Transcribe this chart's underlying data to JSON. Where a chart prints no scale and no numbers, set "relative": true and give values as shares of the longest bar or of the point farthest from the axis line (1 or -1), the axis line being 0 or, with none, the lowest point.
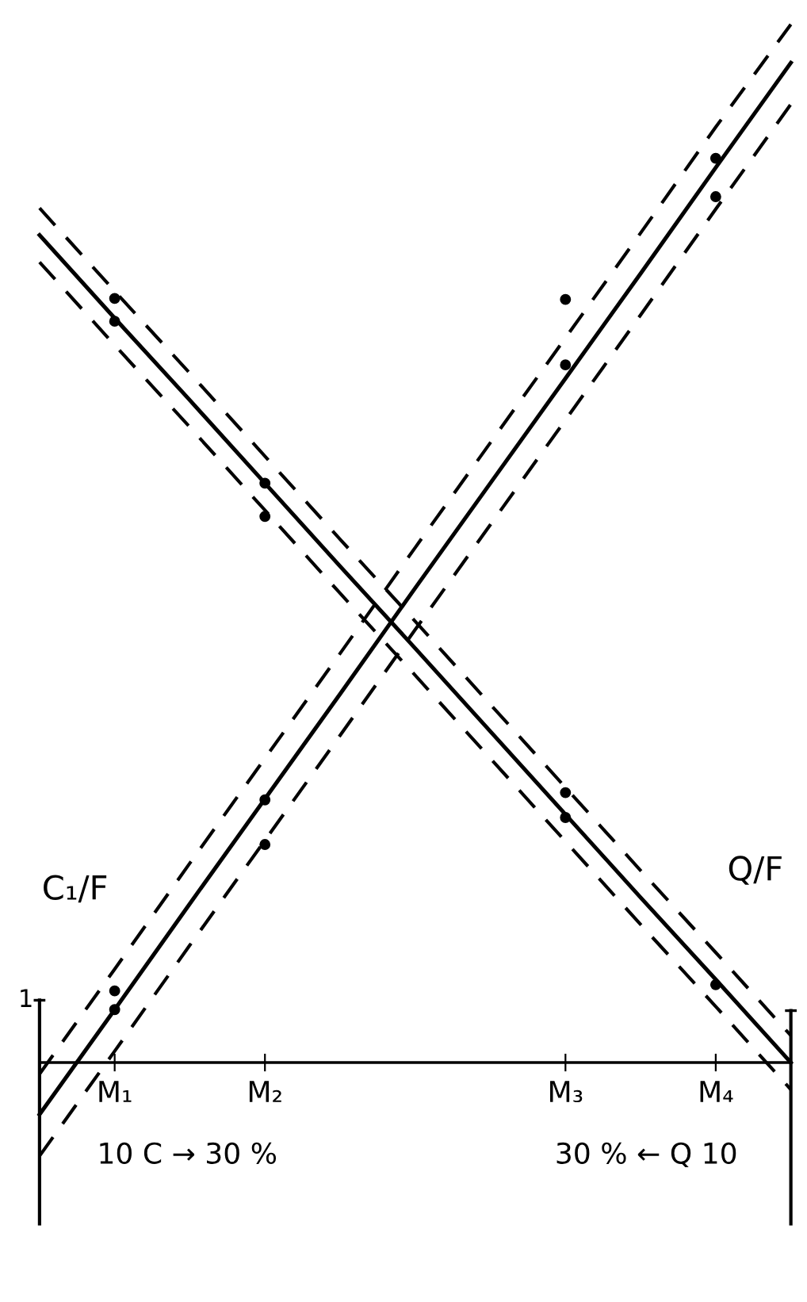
{
  "chart_data": {
    "type": "line",
    "relative": true,
    "categories": [
      null,
      "M₁",
      null,
      "M₂",
      null,
      null,
      null,
      "M₃",
      null,
      "M₄",
      null
    ],
    "series": [
      {
        "name": "C₁/F",
        "color": "#000000",
        "values": [
          -0.05,
          0.051,
          0.153,
          0.254,
          0.355,
          0.457,
          0.558,
          0.659,
          0.76,
          0.862,
          0.963
        ]
      },
      {
        "color": "#000000",
        "line_style": "dashed",
        "values": [
          -0.011,
          0.09,
          0.192,
          0.293,
          0.394,
          0.496,
          0.597,
          0.698,
          0.799,
          0.901,
          1.0
        ]
      },
      {
        "color": "#000000",
        "line_style": "dashed",
        "values": [
          -0.09,
          0.011,
          0.113,
          0.214,
          0.315,
          0.417,
          0.518,
          0.619,
          0.72,
          0.822,
          0.923
        ]
      },
      {
        "name": "Q/F",
        "color": "#000000",
        "values": [
          0.797,
          0.717,
          0.638,
          0.558,
          0.478,
          0.399,
          0.319,
          0.239,
          0.159,
          0.08,
          0.0
        ]
      },
      {
        "color": "#000000",
        "line_style": "dashed",
        "values": [
          0.823,
          0.743,
          0.664,
          0.584,
          0.504,
          0.425,
          0.345,
          0.265,
          0.185,
          0.106,
          0.026
        ]
      },
      {
        "color": "#000000",
        "line_style": "dashed",
        "values": [
          0.771,
          0.691,
          0.612,
          0.532,
          0.452,
          0.373,
          0.293,
          0.213,
          0.133,
          0.054,
          -0.026
        ]
      },
      {
        "type": "scatter",
        "marker": "circle",
        "color": "#000000",
        "values": [
          null,
          0.069,
          null,
          0.253,
          null,
          null,
          null,
          0.735,
          null,
          0.871,
          null
        ]
      },
      {
        "type": "scatter",
        "marker": "circle",
        "color": "#000000",
        "values": [
          null,
          0.051,
          null,
          0.21,
          null,
          null,
          null,
          0.672,
          null,
          0.834,
          null
        ]
      },
      {
        "type": "scatter",
        "marker": "circle",
        "color": "#000000",
        "values": [
          null,
          0.736,
          null,
          0.558,
          null,
          null,
          null,
          0.26,
          null,
          0.075,
          null
        ]
      },
      {
        "type": "scatter",
        "marker": "circle",
        "color": "#000000",
        "values": [
          null,
          0.714,
          null,
          0.526,
          null,
          null,
          null,
          0.236,
          null,
          null,
          null
        ]
      }
    ],
    "annotations": [
      "1",
      "10 C → 30 %",
      "30 % ← Q 10"
    ],
    "line_style": "solid",
    "grid": false,
    "legend": false
  }
}
